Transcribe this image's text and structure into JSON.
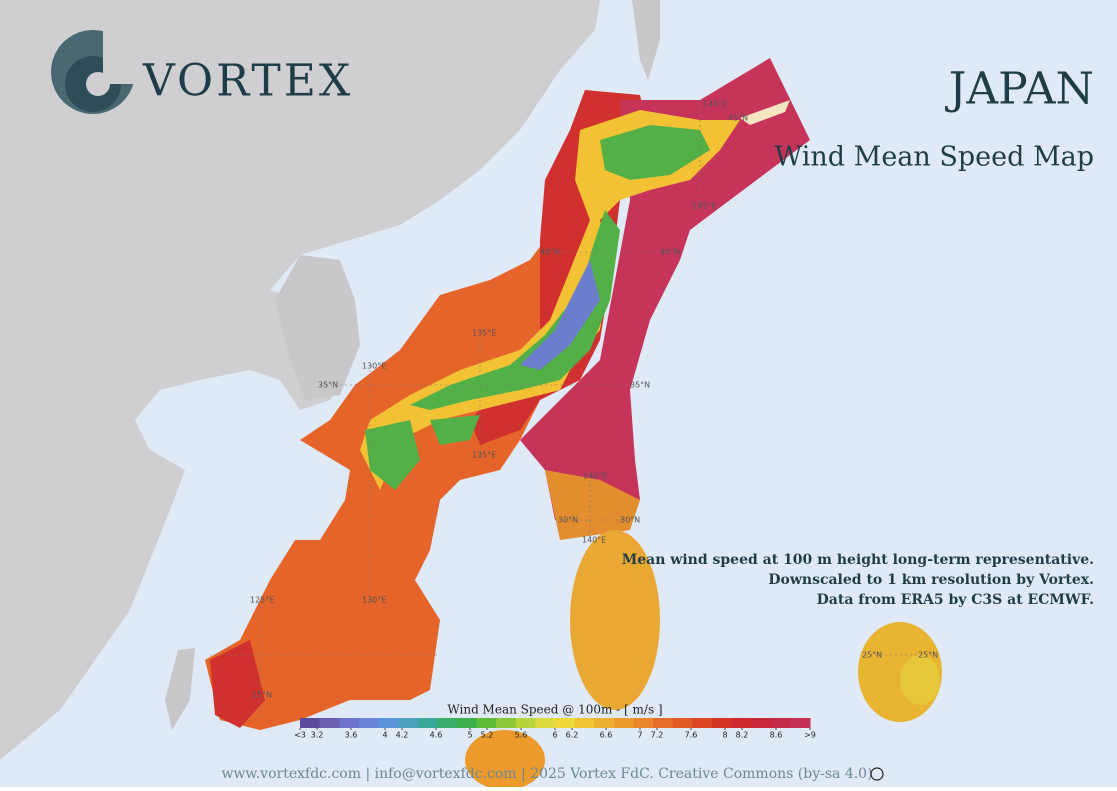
{
  "header": {
    "logo": "VORTEX",
    "title": "JAPAN",
    "subtitle": "Wind Mean Speed Map"
  },
  "description": [
    "Mean wind speed at 100 m height long-term representative.",
    "Downscaled to 1 km resolution by Vortex.",
    "Data from ERA5 by C3S at ECMWF."
  ],
  "map": {
    "grid_labels": [
      "145°E",
      "45°N",
      "145°E",
      "40°N",
      "40°N",
      "135°E",
      "130°E",
      "35°N",
      "35°N",
      "135°E",
      "140°E",
      "30°N",
      "30°N",
      "140°E",
      "125°E",
      "130°E",
      "25°N",
      "25°N",
      "25°N"
    ]
  },
  "legend": {
    "title": "Wind Mean Speed @ 100m - [ m/s ]",
    "range": [
      3,
      9
    ],
    "ticks": [
      {
        "value": 3,
        "label": "<3"
      },
      3.2,
      3.6,
      4,
      4.2,
      4.6,
      5,
      5.2,
      5.6,
      6,
      6.2,
      6.6,
      7,
      7.2,
      7.6,
      8,
      8.2,
      8.6,
      {
        "value": 9,
        "label": ">9"
      }
    ],
    "colors": [
      "#5b4a9b",
      "#6a5fb0",
      "#6c73c8",
      "#6a84d8",
      "#5d93d8",
      "#4da0c0",
      "#3aa89a",
      "#3cad6c",
      "#3cb04a",
      "#5dbb3a",
      "#8cc83a",
      "#b7d43c",
      "#dcdc3e",
      "#efd83a",
      "#f1c536",
      "#eeb030",
      "#ec9a2c",
      "#e9852a",
      "#e56e28",
      "#e15a26",
      "#dc4524",
      "#d43524",
      "#cc2a2c",
      "#c62838",
      "#c22a45",
      "#c52f55"
    ]
  },
  "footer": "www.vortexfdc.com | info@vortexfdc.com | 2025 Vortex FdC.  Creative Commons (by-sa 4.0)"
}
